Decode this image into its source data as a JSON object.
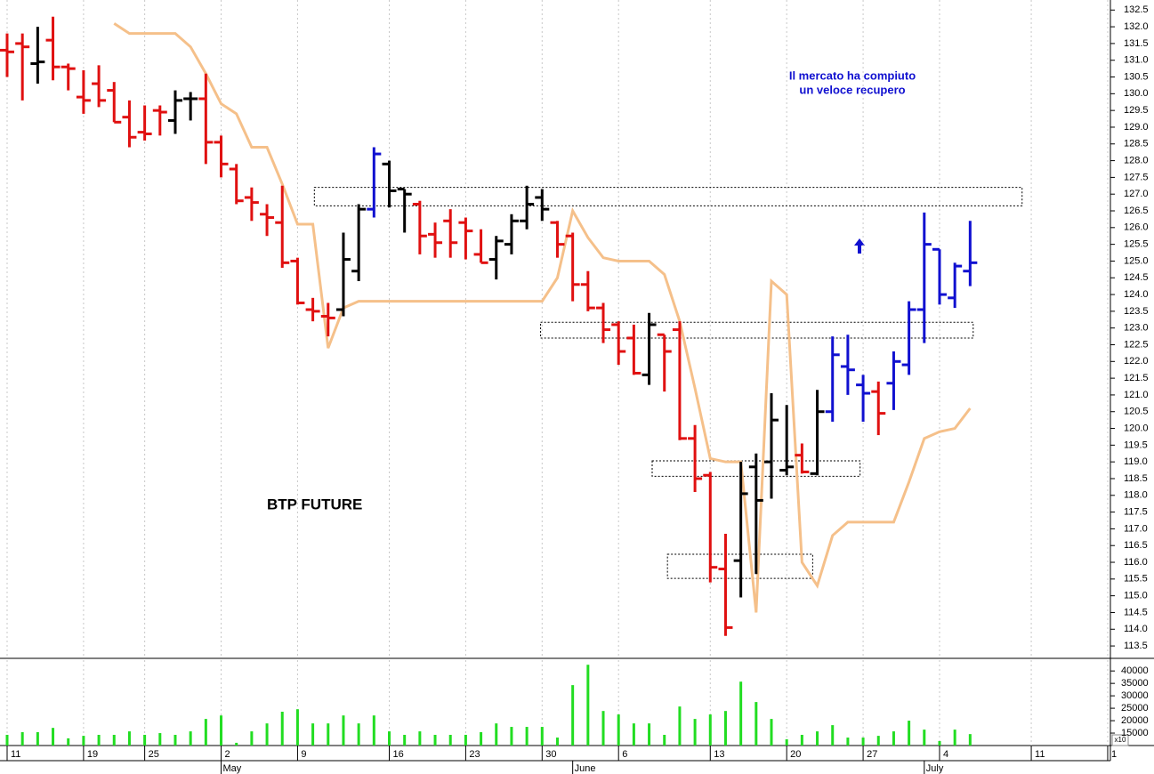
{
  "chart_data": {
    "type": "ohlc",
    "title": "BTP FUTURE",
    "annotation": [
      "Il mercato ha compiuto",
      "un veloce recupero"
    ],
    "categories": [
      "11",
      null,
      null,
      null,
      null,
      "19",
      null,
      null,
      null,
      "25",
      null,
      null,
      null,
      null,
      "2",
      null,
      null,
      null,
      null,
      "9",
      null,
      null,
      null,
      null,
      null,
      "16",
      null,
      null,
      null,
      null,
      "23",
      null,
      null,
      null,
      null,
      "30",
      null,
      null,
      null,
      null,
      "6",
      null,
      null,
      null,
      null,
      null,
      "13",
      null,
      null,
      null,
      null,
      "20",
      null,
      null,
      null,
      null,
      "27",
      null,
      null,
      null,
      null,
      "4",
      null,
      null,
      null,
      null,
      null,
      "11",
      null,
      null,
      null,
      null,
      "1"
    ],
    "months": [
      null,
      null,
      null,
      null,
      null,
      null,
      null,
      null,
      null,
      null,
      null,
      null,
      null,
      null,
      "May",
      null,
      null,
      null,
      null,
      null,
      null,
      null,
      null,
      null,
      null,
      null,
      null,
      null,
      null,
      null,
      null,
      null,
      null,
      null,
      null,
      null,
      null,
      "June",
      null,
      null,
      null,
      null,
      null,
      null,
      null,
      null,
      null,
      null,
      null,
      null,
      null,
      null,
      null,
      null,
      null,
      null,
      null,
      null,
      null,
      null,
      "July",
      null,
      null,
      null,
      null,
      null,
      null,
      null,
      null,
      null,
      null,
      null,
      null
    ],
    "open": [
      131.3,
      131.5,
      130.9,
      131.6,
      130.8,
      129.9,
      130.3,
      130.1,
      129.3,
      128.85,
      129.5,
      129.2,
      129.85,
      129.85,
      128.55,
      127.75,
      126.9,
      126.4,
      126.15,
      125.0,
      123.55,
      123.35,
      123.55,
      124.7,
      126.55,
      127.9,
      127.15,
      126.7,
      125.8,
      126.2,
      126.15,
      125.2,
      125.05,
      125.5,
      126.2,
      126.9,
      126.15,
      125.75,
      124.3,
      123.6,
      123.1,
      122.7,
      121.6,
      122.8,
      122.95,
      119.7,
      118.6,
      115.8,
      116.05,
      118.85,
      119.0,
      118.75,
      119.2,
      118.65,
      120.5,
      121.85,
      121.3,
      121.1,
      121.35,
      121.9,
      123.55,
      125.35,
      123.9,
      124.7,
      null,
      null,
      null,
      null,
      null,
      null,
      null,
      null,
      null
    ],
    "high": [
      131.8,
      131.8,
      132.0,
      132.3,
      130.9,
      130.7,
      130.85,
      130.35,
      129.8,
      129.65,
      129.65,
      130.1,
      130.05,
      130.6,
      128.75,
      127.9,
      127.2,
      126.7,
      127.25,
      125.1,
      123.9,
      123.75,
      125.85,
      126.7,
      128.4,
      128.0,
      127.15,
      126.8,
      126.15,
      126.55,
      126.3,
      125.95,
      125.75,
      126.4,
      127.25,
      127.15,
      126.2,
      125.85,
      124.7,
      123.75,
      123.2,
      123.1,
      123.45,
      122.8,
      123.2,
      120.1,
      118.7,
      116.85,
      119.0,
      119.25,
      121.05,
      120.7,
      119.55,
      121.15,
      122.75,
      122.8,
      121.6,
      121.4,
      122.3,
      123.8,
      126.45,
      125.35,
      124.95,
      126.2,
      null,
      null,
      null,
      null,
      null,
      null,
      null,
      null,
      null
    ],
    "low": [
      130.5,
      129.8,
      130.3,
      130.4,
      130.1,
      129.4,
      129.6,
      129.15,
      128.4,
      128.6,
      128.75,
      128.8,
      129.2,
      127.9,
      127.5,
      126.7,
      126.2,
      125.75,
      124.8,
      123.7,
      123.2,
      122.75,
      123.35,
      124.4,
      126.3,
      126.6,
      125.85,
      125.2,
      125.1,
      125.1,
      125.05,
      124.95,
      124.45,
      125.2,
      125.95,
      126.2,
      125.1,
      123.8,
      123.5,
      122.55,
      121.9,
      121.6,
      121.3,
      121.1,
      119.65,
      118.1,
      115.4,
      113.8,
      114.95,
      115.65,
      117.9,
      118.6,
      118.65,
      118.6,
      120.2,
      121.0,
      120.2,
      119.8,
      120.55,
      121.6,
      122.55,
      123.7,
      123.6,
      124.25,
      null,
      null,
      null,
      null,
      null,
      null,
      null,
      null,
      null
    ],
    "close": [
      131.25,
      131.4,
      130.95,
      130.8,
      130.75,
      129.8,
      129.8,
      129.15,
      128.7,
      128.8,
      129.45,
      129.8,
      129.85,
      128.55,
      127.9,
      126.8,
      126.75,
      126.3,
      124.95,
      123.75,
      123.5,
      123.3,
      125.05,
      126.55,
      128.2,
      127.1,
      127.0,
      125.75,
      125.55,
      125.55,
      125.9,
      124.95,
      125.6,
      126.2,
      126.7,
      126.55,
      125.5,
      124.3,
      123.6,
      122.95,
      122.3,
      121.65,
      123.1,
      122.3,
      119.7,
      118.5,
      115.85,
      114.05,
      118.05,
      117.85,
      120.25,
      118.85,
      118.7,
      120.5,
      122.2,
      121.75,
      121.05,
      120.45,
      122.0,
      123.55,
      125.5,
      124.0,
      124.85,
      124.95,
      null,
      null,
      null,
      null,
      null,
      null,
      null,
      null,
      null
    ],
    "colors": [
      "#e01010",
      "#e01010",
      "#000000",
      "#e01010",
      "#e01010",
      "#e01010",
      "#e01010",
      "#e01010",
      "#e01010",
      "#e01010",
      "#e01010",
      "#000000",
      "#000000",
      "#e01010",
      "#e01010",
      "#e01010",
      "#e01010",
      "#e01010",
      "#e01010",
      "#e01010",
      "#e01010",
      "#e01010",
      "#000000",
      "#000000",
      "#1010d0",
      "#000000",
      "#000000",
      "#e01010",
      "#e01010",
      "#e01010",
      "#e01010",
      "#e01010",
      "#000000",
      "#000000",
      "#000000",
      "#000000",
      "#e01010",
      "#e01010",
      "#e01010",
      "#e01010",
      "#e01010",
      "#e01010",
      "#000000",
      "#e01010",
      "#e01010",
      "#e01010",
      "#e01010",
      "#e01010",
      "#000000",
      "#000000",
      "#000000",
      "#000000",
      "#e01010",
      "#000000",
      "#1010d0",
      "#1010d0",
      "#1010d0",
      "#e01010",
      "#1010d0",
      "#1010d0",
      "#1010d0",
      "#1010d0",
      "#1010d0",
      "#1010d0",
      null,
      null,
      null,
      null,
      null,
      null,
      null,
      null,
      null
    ],
    "ylim": [
      113.13,
      132.8
    ],
    "yticks": [
      113.5,
      {
        "value": 114,
        "label": "114.0"
      },
      114.5,
      {
        "value": 115,
        "label": "115.0"
      },
      115.5,
      {
        "value": 116,
        "label": "116.0"
      },
      116.5,
      {
        "value": 117,
        "label": "117.0"
      },
      117.5,
      {
        "value": 118,
        "label": "118.0"
      },
      118.5,
      {
        "value": 119,
        "label": "119.0"
      },
      119.5,
      {
        "value": 120,
        "label": "120.0"
      },
      120.5,
      {
        "value": 121,
        "label": "121.0"
      },
      121.5,
      {
        "value": 122,
        "label": "122.0"
      },
      122.5,
      {
        "value": 123,
        "label": "123.0"
      },
      123.5,
      {
        "value": 124,
        "label": "124.0"
      },
      124.5,
      {
        "value": 125,
        "label": "125.0"
      },
      125.5,
      {
        "value": 126,
        "label": "126.0"
      },
      126.5,
      {
        "value": 127,
        "label": "127.0"
      },
      127.5,
      {
        "value": 128,
        "label": "128.0"
      },
      128.5,
      {
        "value": 129,
        "label": "129.0"
      },
      129.5,
      {
        "value": 130,
        "label": "130.0"
      },
      130.5,
      {
        "value": 131,
        "label": "131.0"
      },
      131.5,
      {
        "value": 132,
        "label": "132.0"
      },
      132.5
    ],
    "grid": true,
    "line": {
      "color": "#f5c08a",
      "values": [
        null,
        null,
        null,
        null,
        null,
        null,
        null,
        132.1,
        131.8,
        131.8,
        131.8,
        131.8,
        131.4,
        130.6,
        129.7,
        129.4,
        128.4,
        128.4,
        127.3,
        126.1,
        126.1,
        122.4,
        123.6,
        123.8,
        123.8,
        123.8,
        123.8,
        123.8,
        123.8,
        123.8,
        123.8,
        123.8,
        123.8,
        123.8,
        123.8,
        123.8,
        124.5,
        126.5,
        125.7,
        125.1,
        125.0,
        125.0,
        125.0,
        124.6,
        123.2,
        121.2,
        119.1,
        119.0,
        119.0,
        114.5,
        124.4,
        124.0,
        116.0,
        115.3,
        116.8,
        117.2,
        117.2,
        117.2,
        117.2,
        118.4,
        119.7,
        119.9,
        120.0,
        120.6,
        null,
        null,
        null,
        null,
        null,
        null,
        null,
        null,
        null
      ]
    },
    "zones": [
      {
        "x_range": [
          20.1,
          66.4
        ],
        "y_range": [
          126.65,
          127.2
        ]
      },
      {
        "x_range": [
          34.9,
          63.2
        ],
        "y_range": [
          122.7,
          123.17
        ]
      },
      {
        "x_range": [
          42.2,
          55.8
        ],
        "y_range": [
          118.57,
          119.03
        ]
      },
      {
        "x_range": [
          43.2,
          52.7
        ],
        "y_range": [
          115.52,
          116.24
        ]
      }
    ],
    "volume": {
      "color": "#22dd22",
      "ylim": [
        10000,
        44000
      ],
      "yticks": [
        15000,
        20000,
        25000,
        30000,
        35000,
        40000
      ],
      "note": "x10",
      "values": [
        14300,
        15400,
        15400,
        17100,
        12900,
        13900,
        14300,
        14300,
        15700,
        14300,
        15000,
        14300,
        15700,
        20700,
        22100,
        11100,
        15700,
        18900,
        23600,
        24600,
        18900,
        18900,
        22100,
        18900,
        22100,
        15700,
        14300,
        15700,
        14300,
        14300,
        14300,
        15400,
        18900,
        17500,
        17500,
        17500,
        13200,
        34300,
        42500,
        23900,
        22500,
        18900,
        18900,
        14300,
        25700,
        20700,
        22500,
        23900,
        35700,
        27500,
        20700,
        12500,
        14300,
        15700,
        18200,
        13200,
        13200,
        13900,
        15700,
        20000,
        16400,
        11800,
        16400,
        14600,
        null,
        null,
        null,
        null,
        null,
        null,
        null,
        null,
        null
      ]
    }
  }
}
